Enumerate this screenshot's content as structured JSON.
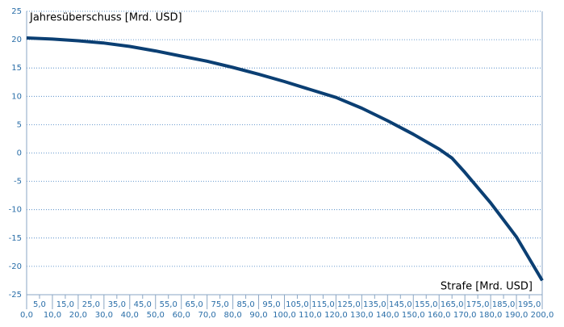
{
  "chart_data": {
    "type": "line",
    "y_label": "Jahresüberschuss [Mrd. USD]",
    "x_label": "Strafe [Mrd. USD]",
    "x": [
      0,
      10,
      20,
      30,
      40,
      50,
      60,
      70,
      80,
      90,
      100,
      110,
      120,
      130,
      140,
      150,
      160,
      165,
      170,
      180,
      190,
      200
    ],
    "values": [
      20.3,
      20.1,
      19.8,
      19.4,
      18.8,
      18.0,
      17.1,
      16.2,
      15.1,
      13.9,
      12.6,
      11.2,
      9.8,
      7.9,
      5.7,
      3.3,
      0.7,
      -0.9,
      -3.4,
      -8.8,
      -14.8,
      -22.5
    ],
    "color": "#0b3f73",
    "xlim": [
      0,
      200
    ],
    "ylim": [
      -25,
      25
    ],
    "yticks": [
      25,
      20,
      15,
      10,
      5,
      0,
      -5,
      -10,
      -15,
      -20,
      -25
    ],
    "xticks": [
      {
        "value": 0,
        "label": "0,0"
      },
      {
        "value": 5,
        "label": "5,0"
      },
      {
        "value": 10,
        "label": "10,0"
      },
      {
        "value": 15,
        "label": "15,0"
      },
      {
        "value": 20,
        "label": "20,0"
      },
      {
        "value": 25,
        "label": "25,0"
      },
      {
        "value": 30,
        "label": "30,0"
      },
      {
        "value": 35,
        "label": "35,0"
      },
      {
        "value": 40,
        "label": "40,0"
      },
      {
        "value": 45,
        "label": "45,0"
      },
      {
        "value": 50,
        "label": "50,0"
      },
      {
        "value": 55,
        "label": "55,0"
      },
      {
        "value": 60,
        "label": "60,0"
      },
      {
        "value": 65,
        "label": "65,0"
      },
      {
        "value": 70,
        "label": "70,0"
      },
      {
        "value": 75,
        "label": "75,0"
      },
      {
        "value": 80,
        "label": "80,0"
      },
      {
        "value": 85,
        "label": "85,0"
      },
      {
        "value": 90,
        "label": "90,0"
      },
      {
        "value": 95,
        "label": "95,0"
      },
      {
        "value": 100,
        "label": "100,0"
      },
      {
        "value": 105,
        "label": "105,0"
      },
      {
        "value": 110,
        "label": "110,0"
      },
      {
        "value": 115,
        "label": "115,0"
      },
      {
        "value": 120,
        "label": "120,0"
      },
      {
        "value": 125,
        "label": "125,0"
      },
      {
        "value": 130,
        "label": "130,0"
      },
      {
        "value": 135,
        "label": "135,0"
      },
      {
        "value": 140,
        "label": "140,0"
      },
      {
        "value": 145,
        "label": "145,0"
      },
      {
        "value": 150,
        "label": "150,0"
      },
      {
        "value": 155,
        "label": "155,0"
      },
      {
        "value": 160,
        "label": "160,0"
      },
      {
        "value": 165,
        "label": "165,0"
      },
      {
        "value": 170,
        "label": "170,0"
      },
      {
        "value": 175,
        "label": "175,0"
      },
      {
        "value": 180,
        "label": "180,0"
      },
      {
        "value": 185,
        "label": "185,0"
      },
      {
        "value": 190,
        "label": "190,0"
      },
      {
        "value": 195,
        "label": "195,0"
      },
      {
        "value": 200,
        "label": "200,0"
      }
    ],
    "grid": true
  }
}
